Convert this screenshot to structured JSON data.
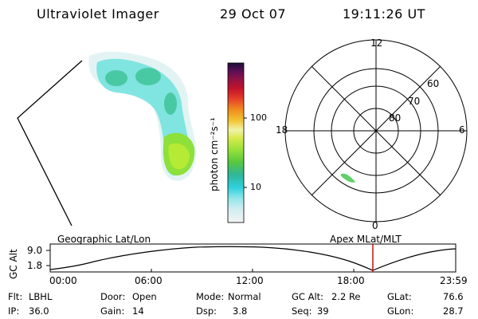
{
  "header": {
    "instrument": "Ultraviolet Imager",
    "date": "29 Oct 07",
    "time": "19:11:26 UT"
  },
  "colorbar": {
    "label": "photon cm⁻²s⁻¹",
    "ticks": [
      "100",
      "10"
    ]
  },
  "polar": {
    "mlt_labels": {
      "top": "12",
      "left": "18",
      "right": "6",
      "bottom": "0"
    },
    "lat_labels": [
      "60",
      "70",
      "80"
    ]
  },
  "timeline": {
    "left_title": "Geographic Lat/Lon",
    "right_title": "Apex MLat/MLT",
    "yaxis_label": "GC Alt",
    "y_max": "9.0",
    "y_min": "1.8",
    "x_ticks": [
      "00:00",
      "06:00",
      "12:00",
      "18:00",
      "23:59"
    ],
    "marker_time_hours": 19.19
  },
  "info": {
    "row1": [
      {
        "k": "Flt:",
        "v": "LBHL"
      },
      {
        "k": "Door:",
        "v": "Open"
      },
      {
        "k": "Mode:",
        "v": "Normal"
      },
      {
        "k": "GC Alt:",
        "v": "2.2 Re"
      },
      {
        "k": "GLat:",
        "v": "76.6"
      }
    ],
    "row2": [
      {
        "k": "IP:",
        "v": "36.0"
      },
      {
        "k": "Gain:",
        "v": "14"
      },
      {
        "k": "Dsp:",
        "v": "3.8"
      },
      {
        "k": "Seq:",
        "v": "39"
      },
      {
        "k": "GLon:",
        "v": "28.7"
      }
    ]
  },
  "colors": {
    "marker": "#c00000",
    "aurora_green": "#7fd53a",
    "aurora_cyan": "#35d6d6"
  }
}
